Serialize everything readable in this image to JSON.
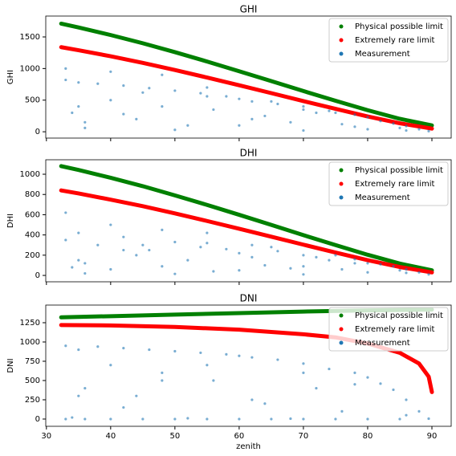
{
  "chart_data": [
    {
      "type": "scatter",
      "title": "GHI",
      "ylabel": "GHI",
      "xlim": [
        29.9,
        93.0
      ],
      "ylim": [
        -100,
        1830
      ],
      "yticks": [
        0,
        500,
        1000,
        1500
      ],
      "sharex": true,
      "legend": "upper right",
      "series": [
        {
          "name": "Physical possible limit",
          "color": "#008000",
          "dense": true,
          "x": [
            32.3,
            35,
            40,
            45,
            50,
            55,
            60,
            65,
            70,
            75,
            80,
            85,
            90
          ],
          "values": [
            1710,
            1650,
            1530,
            1400,
            1259,
            1111,
            957,
            801,
            644,
            490,
            341,
            205,
            100
          ]
        },
        {
          "name": "Extremely rare limit",
          "color": "#ff0000",
          "dense": true,
          "x": [
            32.3,
            35,
            40,
            45,
            50,
            55,
            60,
            65,
            70,
            75,
            80,
            85,
            90
          ],
          "values": [
            1338,
            1290,
            1194,
            1090,
            977,
            858,
            736,
            611,
            485,
            362,
            242,
            134,
            50
          ]
        },
        {
          "name": "Measurement",
          "color": "#1f77b4",
          "dense": false,
          "x": [
            33,
            34,
            35,
            36,
            38,
            40,
            42,
            44,
            46,
            48,
            50,
            52,
            54,
            56,
            58,
            60,
            62,
            64,
            66,
            68,
            70,
            72,
            74,
            76,
            78,
            80,
            82,
            84,
            86,
            88,
            89.5,
            33,
            36,
            40,
            45,
            50,
            55,
            60,
            65,
            70,
            75,
            80,
            85,
            35,
            42,
            48,
            55,
            62,
            70,
            78,
            86
          ],
          "values": [
            820,
            300,
            780,
            150,
            760,
            500,
            730,
            200,
            690,
            400,
            650,
            100,
            610,
            350,
            560,
            520,
            480,
            250,
            440,
            150,
            400,
            300,
            330,
            120,
            270,
            230,
            170,
            130,
            90,
            40,
            10,
            1000,
            60,
            950,
            620,
            30,
            560,
            100,
            480,
            20,
            300,
            40,
            60,
            400,
            280,
            900,
            700,
            200,
            350,
            80,
            20
          ]
        }
      ]
    },
    {
      "type": "scatter",
      "title": "DHI",
      "ylabel": "DHI",
      "xlim": [
        29.9,
        93.0
      ],
      "ylim": [
        -63,
        1143
      ],
      "yticks": [
        0,
        200,
        400,
        600,
        800,
        1000
      ],
      "sharex": true,
      "legend": "upper right",
      "series": [
        {
          "name": "Physical possible limit",
          "color": "#008000",
          "dense": true,
          "x": [
            32.3,
            35,
            40,
            45,
            50,
            55,
            60,
            65,
            70,
            75,
            80,
            85,
            90
          ],
          "values": [
            1080,
            1042,
            965,
            882,
            791,
            697,
            599,
            499,
            398,
            300,
            204,
            117,
            50
          ]
        },
        {
          "name": "Extremely rare limit",
          "color": "#ff0000",
          "dense": true,
          "x": [
            32.3,
            35,
            40,
            45,
            50,
            55,
            60,
            65,
            70,
            75,
            80,
            85,
            90
          ],
          "values": [
            840,
            810,
            749,
            684,
            613,
            538,
            461,
            383,
            304,
            226,
            151,
            83,
            30
          ]
        },
        {
          "name": "Measurement",
          "color": "#1f77b4",
          "dense": false,
          "x": [
            33,
            34,
            35,
            36,
            38,
            40,
            42,
            44,
            46,
            48,
            50,
            52,
            54,
            56,
            58,
            60,
            62,
            64,
            66,
            68,
            70,
            72,
            74,
            76,
            78,
            80,
            82,
            84,
            86,
            88,
            89.5,
            33,
            36,
            40,
            45,
            50,
            55,
            60,
            65,
            70,
            75,
            80,
            85,
            35,
            42,
            48,
            55,
            62,
            70,
            78,
            86
          ],
          "values": [
            350,
            80,
            420,
            120,
            300,
            60,
            380,
            200,
            250,
            90,
            330,
            150,
            280,
            40,
            260,
            220,
            300,
            100,
            240,
            70,
            200,
            180,
            150,
            60,
            160,
            120,
            110,
            90,
            60,
            30,
            10,
            620,
            20,
            500,
            300,
            15,
            420,
            50,
            280,
            10,
            200,
            30,
            50,
            150,
            250,
            450,
            320,
            180,
            90,
            120,
            25
          ]
        }
      ]
    },
    {
      "type": "scatter",
      "title": "DNI",
      "ylabel": "DNI",
      "xlabel": "zenith",
      "xlim": [
        29.9,
        93.0
      ],
      "ylim": [
        -94,
        1479
      ],
      "xticks": [
        30,
        40,
        50,
        60,
        70,
        80,
        90
      ],
      "yticks": [
        0,
        250,
        500,
        750,
        1000,
        1250
      ],
      "legend": "upper right",
      "series": [
        {
          "name": "Physical possible limit",
          "color": "#008000",
          "dense": true,
          "x": [
            32.3,
            40,
            50,
            60,
            70,
            80,
            90
          ],
          "values": [
            1320,
            1335,
            1355,
            1375,
            1395,
            1410,
            1420
          ]
        },
        {
          "name": "Extremely rare limit",
          "color": "#ff0000",
          "dense": true,
          "x": [
            32.3,
            40,
            50,
            60,
            70,
            75,
            80,
            85,
            88,
            89.5,
            90
          ],
          "values": [
            1220,
            1215,
            1195,
            1160,
            1100,
            1060,
            980,
            860,
            720,
            550,
            350
          ]
        },
        {
          "name": "Measurement",
          "color": "#1f77b4",
          "dense": false,
          "x": [
            33,
            34,
            35,
            36,
            38,
            40,
            42,
            44,
            46,
            48,
            50,
            52,
            54,
            56,
            58,
            60,
            62,
            64,
            66,
            68,
            70,
            72,
            74,
            76,
            78,
            80,
            82,
            84,
            86,
            88,
            89.5,
            33,
            36,
            40,
            45,
            50,
            55,
            60,
            65,
            70,
            75,
            80,
            85,
            35,
            42,
            48,
            55,
            62,
            70,
            78,
            86
          ],
          "values": [
            950,
            20,
            900,
            400,
            940,
            700,
            920,
            300,
            900,
            600,
            880,
            10,
            860,
            500,
            840,
            820,
            800,
            200,
            770,
            5,
            720,
            400,
            650,
            100,
            600,
            540,
            460,
            380,
            250,
            100,
            5,
            0,
            0,
            0,
            0,
            0,
            0,
            0,
            0,
            0,
            0,
            0,
            0,
            300,
            150,
            500,
            700,
            250,
            600,
            450,
            50
          ]
        }
      ]
    }
  ]
}
